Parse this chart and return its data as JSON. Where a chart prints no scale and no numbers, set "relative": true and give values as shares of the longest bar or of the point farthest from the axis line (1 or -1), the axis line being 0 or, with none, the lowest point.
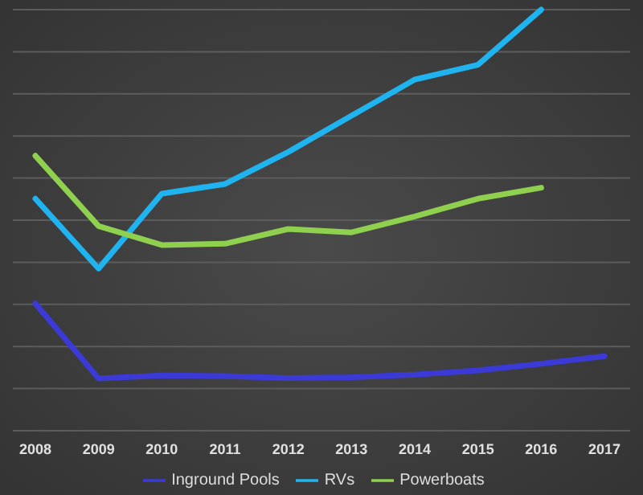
{
  "chart_data": {
    "type": "line",
    "relative": true,
    "categories": [
      "2008",
      "2009",
      "2010",
      "2011",
      "2012",
      "2013",
      "2014",
      "2015",
      "2016",
      "2017"
    ],
    "series": [
      {
        "name": "Inground Pools",
        "color": "#3b3ad6",
        "values": [
          0.302,
          0.124,
          0.131,
          0.13,
          0.125,
          0.127,
          0.133,
          0.143,
          0.159,
          0.177
        ]
      },
      {
        "name": "RVs",
        "color": "#1fb4f0",
        "values": [
          0.551,
          0.385,
          0.563,
          0.586,
          0.662,
          0.748,
          0.834,
          0.869,
          1,
          null
        ]
      },
      {
        "name": "Powerboats",
        "color": "#8fd14f",
        "values": [
          0.653,
          0.486,
          0.441,
          0.444,
          0.479,
          0.471,
          0.509,
          0.551,
          0.577,
          null
        ]
      }
    ],
    "grid": "y",
    "legend": "bottom",
    "marker": "none",
    "line_style": "solid"
  }
}
